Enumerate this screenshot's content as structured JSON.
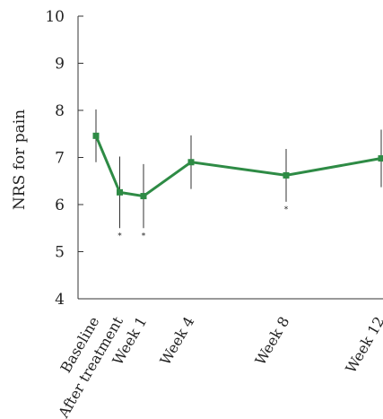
{
  "chart_data": {
    "type": "line",
    "title": "",
    "xlabel": "",
    "ylabel": "NRS for pain",
    "ylim": [
      4,
      10
    ],
    "yticks": [
      4,
      5,
      6,
      7,
      8,
      9,
      10
    ],
    "grid": false,
    "legend": "none",
    "categories": [
      "Baseline",
      "After treatment",
      "Week 1",
      "Week 4",
      "Week 8",
      "Week 12"
    ],
    "x": [
      0,
      1,
      2,
      4,
      8,
      12
    ],
    "series": [
      {
        "values": [
          7.46,
          6.26,
          6.18,
          6.9,
          6.62,
          6.98
        ],
        "error": [
          0.56,
          0.76,
          0.68,
          0.57,
          0.56,
          0.61
        ],
        "significant": [
          false,
          true,
          true,
          false,
          true,
          false
        ],
        "color": "#2e8b45"
      }
    ],
    "significance_marker": "*"
  }
}
